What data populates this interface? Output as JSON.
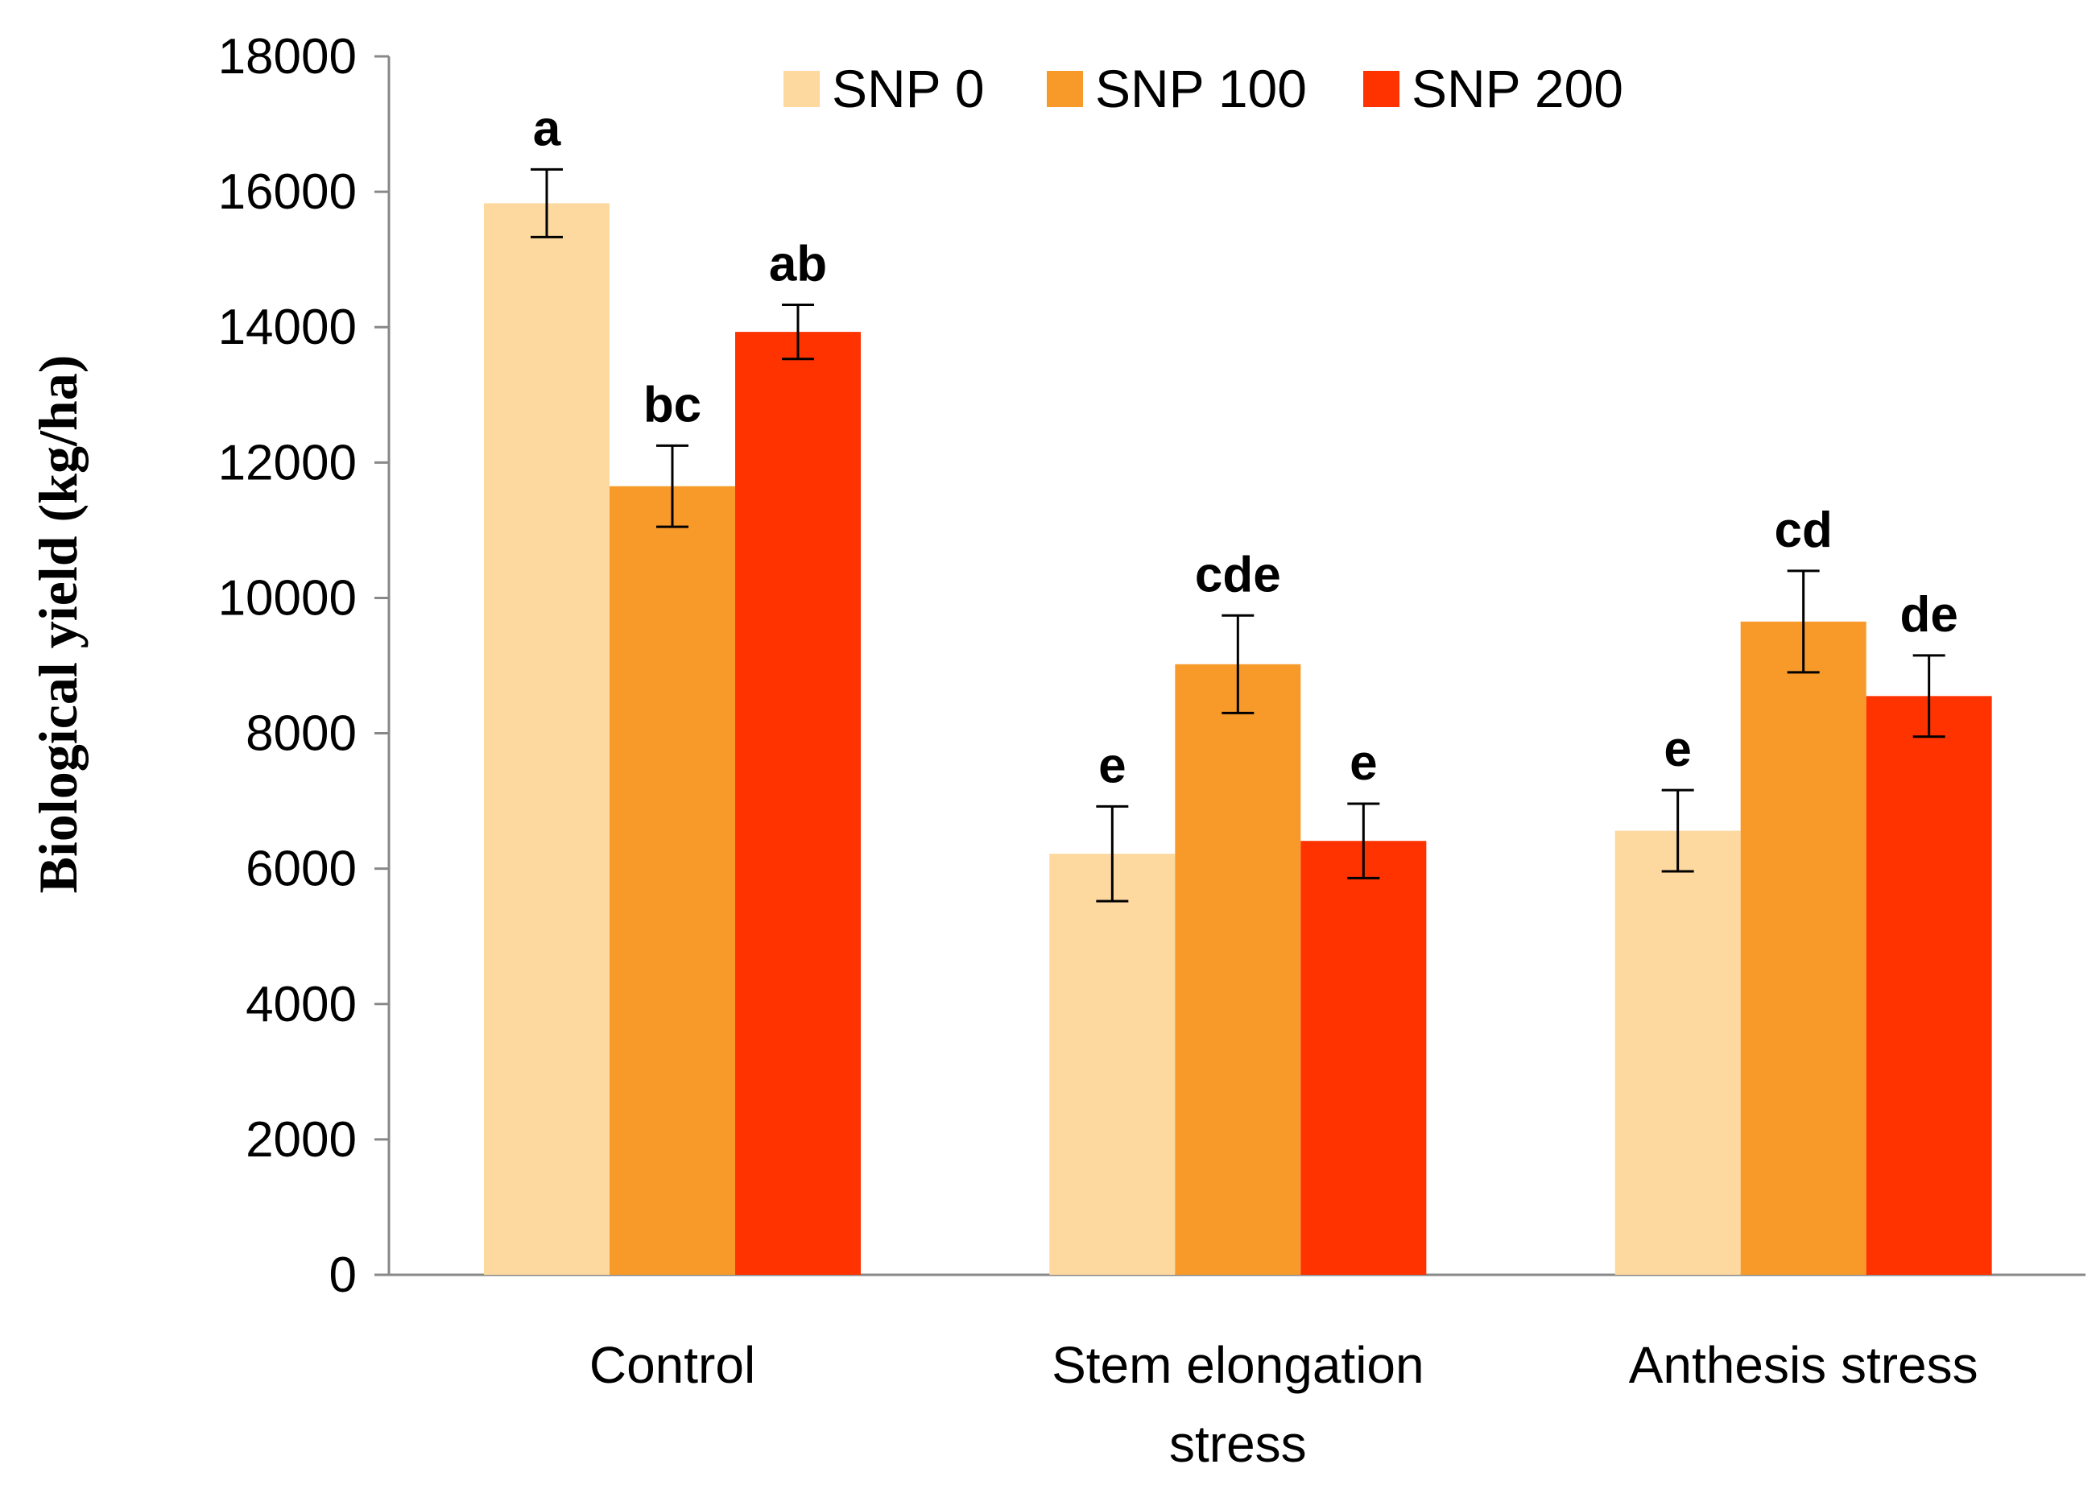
{
  "chart_data": {
    "type": "bar",
    "title": "",
    "xlabel": "",
    "ylabel": "Biological yield  (kg/ha)",
    "ylim": [
      0,
      18000
    ],
    "yticks": [
      0,
      2000,
      4000,
      6000,
      8000,
      10000,
      12000,
      14000,
      16000,
      18000
    ],
    "grid": false,
    "legend_position": "top",
    "categories": [
      [
        "Control"
      ],
      [
        "Stem elongation",
        "stress"
      ],
      [
        "Anthesis stress"
      ]
    ],
    "series": [
      {
        "name": "SNP 0",
        "color": "#FDD89F",
        "values": [
          15830,
          6220,
          6560
        ],
        "errors": [
          500,
          700,
          600
        ],
        "letters": [
          "a",
          "e",
          "e"
        ]
      },
      {
        "name": "SNP 100",
        "color": "#F79A2A",
        "values": [
          11650,
          9020,
          9650
        ],
        "errors": [
          600,
          720,
          750
        ],
        "letters": [
          "bc",
          "cde",
          "cd"
        ]
      },
      {
        "name": "SNP 200",
        "color": "#FF3300",
        "values": [
          13930,
          6410,
          8550
        ],
        "errors": [
          400,
          550,
          600
        ],
        "letters": [
          "ab",
          "e",
          "de"
        ]
      }
    ]
  }
}
